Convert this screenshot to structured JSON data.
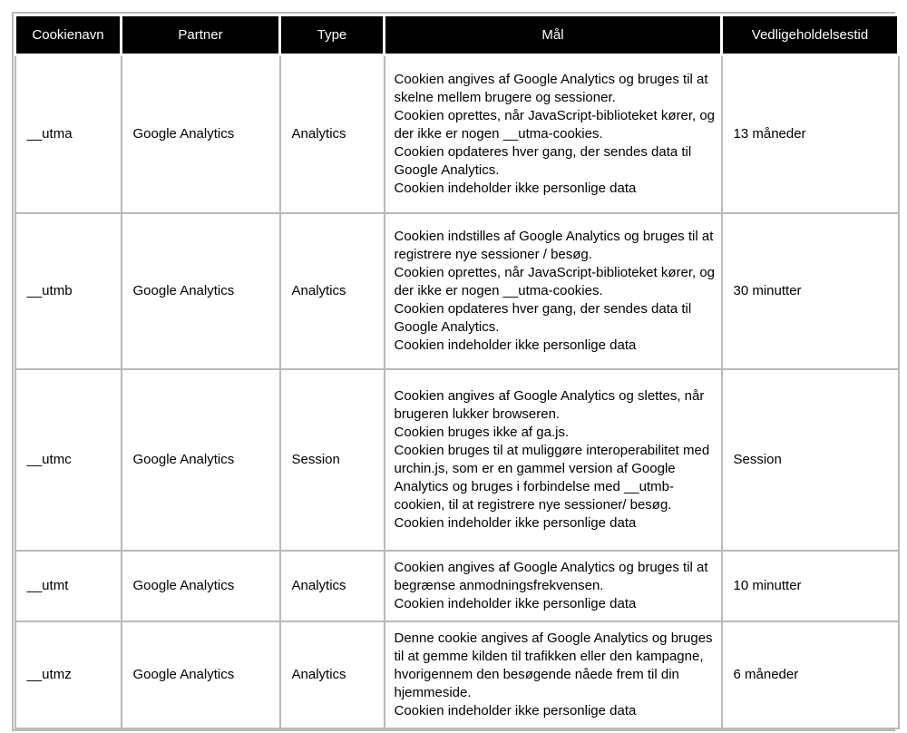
{
  "colors": {
    "header_bg": "#000000",
    "header_text": "#ffffff",
    "border": "#b9b9b9"
  },
  "table": {
    "headers": {
      "cookienavn": "Cookienavn",
      "partner": "Partner",
      "type": "Type",
      "maal": "Mål",
      "vedligeholdelsestid": "Vedligeholdelsestid"
    },
    "rows": [
      {
        "cookienavn": "__utma",
        "partner": "Google Analytics",
        "type": "Analytics",
        "maal": "Cookien angives af Google Analytics og bruges til at skelne mellem brugere og sessioner.\nCookien oprettes, når JavaScript-biblioteket kører, og der ikke er nogen __utma-cookies.\nCookien opdateres hver gang, der sendes data til Google Analytics.\nCookien indeholder ikke personlige data",
        "vedligeholdelsestid": "13 måneder"
      },
      {
        "cookienavn": "__utmb",
        "partner": "Google Analytics",
        "type": "Analytics",
        "maal": "Cookien indstilles af Google Analytics og bruges til at registrere nye sessioner / besøg.\nCookien oprettes, når JavaScript-biblioteket kører, og der ikke er nogen __utma-cookies.\nCookien opdateres hver gang, der sendes data til Google Analytics.\nCookien indeholder ikke personlige data",
        "vedligeholdelsestid": "30 minutter"
      },
      {
        "cookienavn": "__utmc",
        "partner": "Google Analytics",
        "type": "Session",
        "maal": "Cookien angives af Google Analytics og slettes, når brugeren lukker browseren.\nCookien bruges ikke af ga.js.\nCookien bruges til at muliggøre interoperabilitet med urchin.js, som er en gammel version af Google Analytics og bruges i forbindelse med __utmb-cookien, til at registrere nye sessioner/ besøg.\nCookien indeholder ikke personlige data",
        "vedligeholdelsestid": "Session"
      },
      {
        "cookienavn": "__utmt",
        "partner": "Google Analytics",
        "type": "Analytics",
        "maal": "Cookien angives af Google Analytics og bruges til at begrænse anmodningsfrekvensen.\nCookien indeholder ikke personlige data",
        "vedligeholdelsestid": "10 minutter"
      },
      {
        "cookienavn": "__utmz",
        "partner": "Google Analytics",
        "type": "Analytics",
        "maal": "Denne cookie angives af Google Analytics og bruges til at gemme kilden til trafikken eller den kampagne, hvorigennem den besøgende nåede frem til din hjemmeside.\nCookien indeholder ikke personlige data",
        "vedligeholdelsestid": "6 måneder"
      }
    ]
  }
}
